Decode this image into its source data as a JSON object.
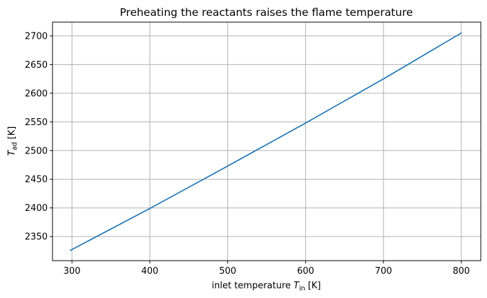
{
  "chart_data": {
    "type": "line",
    "title": "Preheating the reactants raises the flame temperature",
    "xlabel": {
      "prefix": "inlet temperature ",
      "symbol": "T",
      "subscript": "in",
      "suffix": " [K]"
    },
    "ylabel": {
      "symbol": "T",
      "subscript": "ad",
      "suffix": " [K]"
    },
    "xlim": [
      275,
      825
    ],
    "ylim": [
      2308,
      2724
    ],
    "xticks": [
      300,
      400,
      500,
      600,
      700,
      800
    ],
    "yticks": [
      2350,
      2400,
      2450,
      2500,
      2550,
      2600,
      2650,
      2700
    ],
    "grid": true,
    "series": [
      {
        "color": "#1f77b4",
        "x": [
          298,
          400,
          500,
          600,
          700,
          800
        ],
        "y": [
          2326,
          2399,
          2473,
          2548,
          2625,
          2705
        ]
      }
    ]
  }
}
